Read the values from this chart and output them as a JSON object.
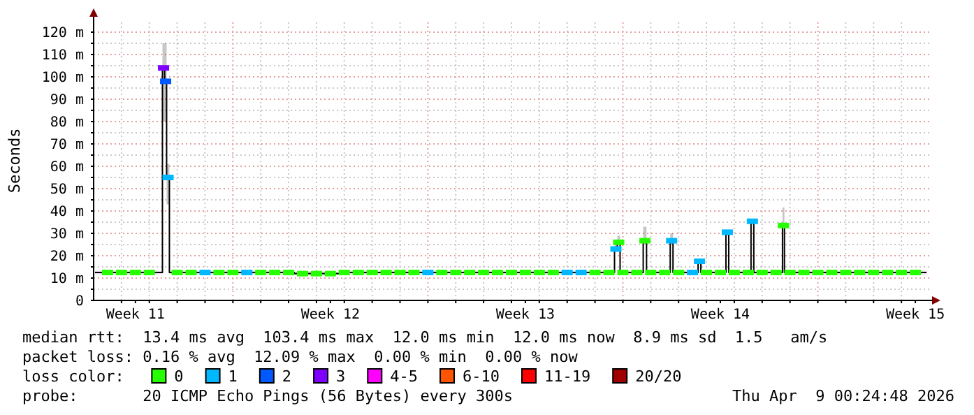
{
  "chart_data": {
    "type": "step",
    "ylabel": "Seconds",
    "legend_title": "loss color:",
    "legend": "bottom",
    "grid": true,
    "xlim": [
      "2026-03-10",
      "2026-04-09"
    ],
    "ylim": [
      0,
      125
    ],
    "xticks": [
      {
        "value": "2026-03-11T12:00",
        "label": "Week 11"
      },
      {
        "value": "2026-03-18T12:00",
        "label": "Week 12"
      },
      {
        "value": "2026-03-25T12:00",
        "label": "Week 13"
      },
      {
        "value": "2026-04-01T12:00",
        "label": "Week 14"
      },
      {
        "value": "2026-04-08T12:00",
        "label": "Week 15"
      },
      {
        "value": "2026-03-11",
        "label": null
      },
      {
        "value": "2026-03-12",
        "label": null
      },
      {
        "value": "2026-03-13",
        "label": null
      },
      {
        "value": "2026-03-14",
        "label": null
      },
      {
        "value": "2026-03-15",
        "label": null
      },
      {
        "value": "2026-03-16",
        "label": null
      },
      {
        "value": "2026-03-17",
        "label": null
      },
      {
        "value": "2026-03-18",
        "label": null
      },
      {
        "value": "2026-03-19",
        "label": null
      },
      {
        "value": "2026-03-20",
        "label": null
      },
      {
        "value": "2026-03-21",
        "label": null
      },
      {
        "value": "2026-03-22",
        "label": null
      },
      {
        "value": "2026-03-23",
        "label": null
      },
      {
        "value": "2026-03-24",
        "label": null
      },
      {
        "value": "2026-03-25",
        "label": null
      },
      {
        "value": "2026-03-26",
        "label": null
      },
      {
        "value": "2026-03-27",
        "label": null
      },
      {
        "value": "2026-03-28",
        "label": null
      },
      {
        "value": "2026-03-29",
        "label": null
      },
      {
        "value": "2026-03-30",
        "label": null
      },
      {
        "value": "2026-03-31",
        "label": null
      },
      {
        "value": "2026-04-01",
        "label": null
      },
      {
        "value": "2026-04-02",
        "label": null
      },
      {
        "value": "2026-04-03",
        "label": null
      },
      {
        "value": "2026-04-04",
        "label": null
      },
      {
        "value": "2026-04-05",
        "label": null
      },
      {
        "value": "2026-04-06",
        "label": null
      },
      {
        "value": "2026-04-07",
        "label": null
      },
      {
        "value": "2026-04-08",
        "label": null
      }
    ],
    "yticks": [
      0,
      {
        "value": 10,
        "label": "10 m"
      },
      {
        "value": 20,
        "label": "20 m"
      },
      {
        "value": 30,
        "label": "30 m"
      },
      {
        "value": 40,
        "label": "40 m"
      },
      {
        "value": 50,
        "label": "50 m"
      },
      {
        "value": 60,
        "label": "60 m"
      },
      {
        "value": 70,
        "label": "70 m"
      },
      {
        "value": 80,
        "label": "80 m"
      },
      {
        "value": 90,
        "label": "90 m"
      },
      {
        "value": 100,
        "label": "100 m"
      },
      {
        "value": 110,
        "label": "110 m"
      },
      {
        "value": 120,
        "label": "120 m"
      },
      {
        "value": 5,
        "label": null
      },
      {
        "value": 15,
        "label": null
      },
      {
        "value": 25,
        "label": null
      },
      {
        "value": 35,
        "label": null
      },
      {
        "value": 45,
        "label": null
      },
      {
        "value": 55,
        "label": null
      },
      {
        "value": 65,
        "label": null
      },
      {
        "value": 75,
        "label": null
      },
      {
        "value": 85,
        "label": null
      },
      {
        "value": 95,
        "label": null
      },
      {
        "value": 105,
        "label": null
      },
      {
        "value": 115,
        "label": null
      }
    ],
    "annotations": [
      "median rtt:  13.4 ms avg  103.4 ms max  12.0 ms min  12.0 ms now  8.9 ms sd  1.5   am/s",
      "packet loss: 0.16 % avg  12.09 % max  0.00 % min  0.00 % now",
      "probe:       20 ICMP Echo Pings (56 Bytes) every 300s",
      "Thu Apr  9 00:24:48 2026"
    ],
    "series": [
      {
        "color": "#000000",
        "x": [
          "2026-03-10T01:12",
          "2026-03-12T11:17",
          "2026-03-12T13:12",
          "2026-03-12T14:53",
          "2026-03-12T17:17",
          "2026-03-17T04:48",
          "2026-03-19T00:00",
          "2026-03-28T16:48",
          "2026-03-28T19:12",
          "2026-03-28T21:36",
          "2026-03-29T17:31",
          "2026-03-29T20:24",
          "2026-03-30T16:48",
          "2026-03-30T19:12",
          "2026-03-31T16:48",
          "2026-03-31T19:12",
          "2026-04-01T16:48",
          "2026-04-01T19:12",
          "2026-04-02T14:24",
          "2026-04-02T16:48",
          "2026-04-03T17:31",
          "2026-04-03T19:12",
          "2026-04-08T21:36"
        ],
        "values": [
          12.5,
          104,
          98,
          55,
          12.5,
          12,
          12.5,
          23,
          26,
          12.5,
          26.7,
          12.5,
          26.7,
          12.5,
          17.5,
          12.5,
          30.5,
          12.5,
          35.4,
          12.5,
          33.5,
          12.5,
          12.5
        ],
        "lower": [
          12,
          80,
          80,
          43,
          12,
          11.5,
          12,
          22,
          25,
          12,
          25,
          12,
          25,
          12,
          17,
          12,
          29,
          12,
          34,
          12,
          33,
          12,
          12
        ],
        "upper": [
          13,
          115,
          115,
          61,
          13,
          12.5,
          13,
          27,
          29,
          13,
          33,
          13,
          30,
          13,
          18,
          13,
          31,
          13,
          36,
          13,
          41.6,
          13,
          13
        ]
      },
      {
        "name": "0",
        "color": "#26ff00",
        "type": "scatter",
        "marker": "square",
        "x": [
          "2026-03-10T12:00",
          "2026-03-11T00:00",
          "2026-03-11T12:00",
          "2026-03-12T00:00",
          "2026-03-13T00:00",
          "2026-03-13T12:00",
          "2026-03-14T12:00",
          "2026-03-15T00:00",
          "2026-03-16T00:00",
          "2026-03-16T12:00",
          "2026-03-17T00:00",
          "2026-03-17T12:00",
          "2026-03-18T00:00",
          "2026-03-18T12:00",
          "2026-03-19T00:00",
          "2026-03-19T12:00",
          "2026-03-20T00:00",
          "2026-03-20T12:00",
          "2026-03-21T00:00",
          "2026-03-21T12:00",
          "2026-03-22T12:00",
          "2026-03-23T00:00",
          "2026-03-23T12:00",
          "2026-03-24T00:00",
          "2026-03-24T12:00",
          "2026-03-25T00:00",
          "2026-03-25T12:00",
          "2026-03-26T00:00",
          "2026-03-26T12:00",
          "2026-03-28T00:00",
          "2026-03-28T12:00",
          "2026-03-28T20:24",
          "2026-03-29T00:00",
          "2026-03-29T12:00",
          "2026-03-29T19:00",
          "2026-03-30T00:00",
          "2026-03-30T12:00",
          "2026-03-31T00:00",
          "2026-04-01T00:00",
          "2026-04-01T12:00",
          "2026-04-02T00:00",
          "2026-04-02T12:00",
          "2026-04-03T00:00",
          "2026-04-03T12:00",
          "2026-04-03T18:20",
          "2026-04-04T00:00",
          "2026-04-04T12:00",
          "2026-04-05T00:00",
          "2026-04-05T12:00",
          "2026-04-06T00:00",
          "2026-04-06T12:00",
          "2026-04-07T00:00",
          "2026-04-07T12:00",
          "2026-04-08T00:00",
          "2026-04-08T12:00"
        ],
        "values": [
          12.5,
          12.5,
          12.5,
          12.5,
          12.5,
          12.5,
          12.5,
          12.5,
          12.5,
          12.5,
          12.5,
          12,
          12,
          12,
          12.5,
          12.5,
          12.5,
          12.5,
          12.5,
          12.5,
          12.5,
          12.5,
          12.5,
          12.5,
          12.5,
          12.5,
          12.5,
          12.5,
          12.5,
          12.5,
          12.5,
          26,
          12.5,
          12.5,
          26.7,
          12.5,
          12.5,
          12.5,
          12.5,
          12.5,
          12.5,
          12.5,
          12.5,
          12.5,
          33.5,
          12.5,
          12.5,
          12.5,
          12.5,
          12.5,
          12.5,
          12.5,
          12.5,
          12.5,
          12.5
        ]
      },
      {
        "name": "1",
        "color": "#00b8ff",
        "type": "scatter",
        "marker": "square",
        "x": [
          "2026-03-12T16:05",
          "2026-03-14T00:00",
          "2026-03-15T12:00",
          "2026-03-22T00:00",
          "2026-03-27T00:00",
          "2026-03-27T12:00",
          "2026-03-28T18:00",
          "2026-03-30T18:00",
          "2026-03-31T12:00",
          "2026-03-31T18:00",
          "2026-04-01T18:00",
          "2026-04-02T15:36"
        ],
        "values": [
          55,
          12.5,
          12.5,
          12.5,
          12.5,
          12.5,
          23,
          26.7,
          12.5,
          17.5,
          30.5,
          35.4
        ]
      },
      {
        "name": "2",
        "color": "#0059ff",
        "type": "scatter",
        "marker": "square",
        "x": [
          "2026-03-12T14:02"
        ],
        "values": [
          98
        ]
      },
      {
        "name": "3",
        "color": "#7e00ff",
        "type": "scatter",
        "marker": "square",
        "x": [
          "2026-03-12T12:14"
        ],
        "values": [
          104
        ]
      },
      {
        "name": "4-5",
        "color": "#ff00ff",
        "type": "scatter"
      },
      {
        "name": "6-10",
        "color": "#ff5500",
        "type": "scatter"
      },
      {
        "name": "11-19",
        "color": "#ff0000",
        "type": "scatter"
      },
      {
        "name": "20/20",
        "color": "#a10000",
        "type": "scatter"
      }
    ]
  }
}
